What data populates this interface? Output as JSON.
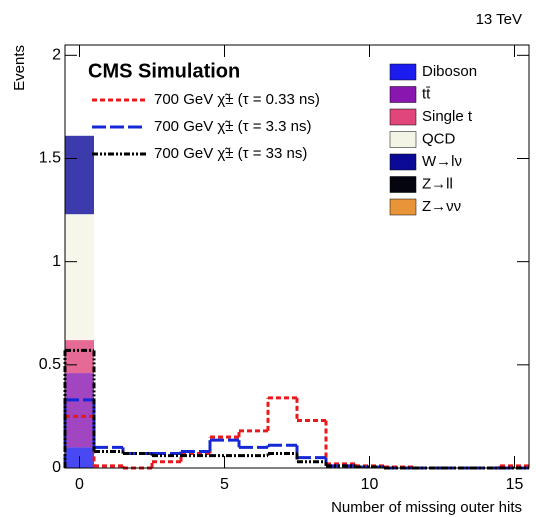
{
  "chart_data": {
    "type": "histogram",
    "energy_label": "13 TeV",
    "annotation": "CMS Simulation",
    "xlabel": "Number of missing outer hits",
    "ylabel": "Events",
    "bins": [
      -0.5,
      0.5,
      1.5,
      2.5,
      3.5,
      4.5,
      5.5,
      6.5,
      7.5,
      8.5,
      9.5,
      10.5,
      11.5,
      12.5,
      13.5,
      14.5,
      15.5
    ],
    "xlim": [
      -0.5,
      15.5
    ],
    "xticks": [
      0,
      5,
      10,
      15
    ],
    "ylim": [
      0,
      2.05
    ],
    "yticks": [
      0,
      0.5,
      1,
      1.5,
      2
    ],
    "stack": [
      {
        "name": "Diboson",
        "color": "#1c1cf0",
        "values": [
          0.1,
          0,
          0,
          0,
          0,
          0,
          0,
          0,
          0,
          0,
          0,
          0,
          0,
          0,
          0,
          0
        ]
      },
      {
        "name": "tt̄",
        "color": "#8a16b0",
        "values": [
          0.36,
          0,
          0,
          0,
          0,
          0,
          0,
          0,
          0,
          0,
          0,
          0,
          0,
          0,
          0,
          0
        ]
      },
      {
        "name": "Single t",
        "color": "#e0457b",
        "values": [
          0.16,
          0,
          0,
          0,
          0,
          0,
          0,
          0,
          0,
          0,
          0,
          0,
          0,
          0,
          0,
          0
        ]
      },
      {
        "name": "QCD",
        "color": "#f4f4e6",
        "values": [
          0.61,
          0,
          0,
          0,
          0,
          0,
          0,
          0,
          0,
          0,
          0,
          0,
          0,
          0,
          0,
          0
        ]
      },
      {
        "name": "W→lν",
        "color": "#0a0a96",
        "values": [
          0.38,
          0,
          0,
          0,
          0,
          0,
          0,
          0,
          0,
          0,
          0,
          0,
          0,
          0,
          0,
          0
        ]
      },
      {
        "name": "Z→ll",
        "color": "#050510",
        "values": [
          0,
          0,
          0,
          0,
          0,
          0,
          0,
          0,
          0,
          0,
          0,
          0,
          0,
          0,
          0,
          0
        ]
      },
      {
        "name": "Z→νν",
        "color": "#e8953a",
        "values": [
          0,
          0,
          0,
          0,
          0,
          0,
          0,
          0,
          0,
          0,
          0,
          0,
          0,
          0,
          0,
          0
        ]
      }
    ],
    "series": [
      {
        "name": "700 GeV χ̃± (τ = 0.33 ns)",
        "color": "#e8191c",
        "dash": "5,3",
        "values": [
          0.25,
          0.01,
          0.0,
          0.03,
          0.07,
          0.15,
          0.18,
          0.34,
          0.23,
          0.02,
          0.01,
          0.005,
          0,
          0,
          0,
          0.01
        ]
      },
      {
        "name": "700 GeV χ̃± (τ = 3.3 ns)",
        "color": "#1428d8",
        "dash": "14,4",
        "values": [
          0.33,
          0.1,
          0.07,
          0.07,
          0.08,
          0.135,
          0.1,
          0.11,
          0.05,
          0.01,
          0.005,
          0,
          0,
          0,
          0,
          0
        ]
      },
      {
        "name": "700 GeV χ̃± (τ = 33 ns)",
        "color": "#000000",
        "dash": "6,2,2,2,2,2",
        "values": [
          0.57,
          0.08,
          0.07,
          0.06,
          0.06,
          0.06,
          0.06,
          0.07,
          0.03,
          0.01,
          0.005,
          0,
          0,
          0,
          0,
          0
        ]
      }
    ]
  }
}
